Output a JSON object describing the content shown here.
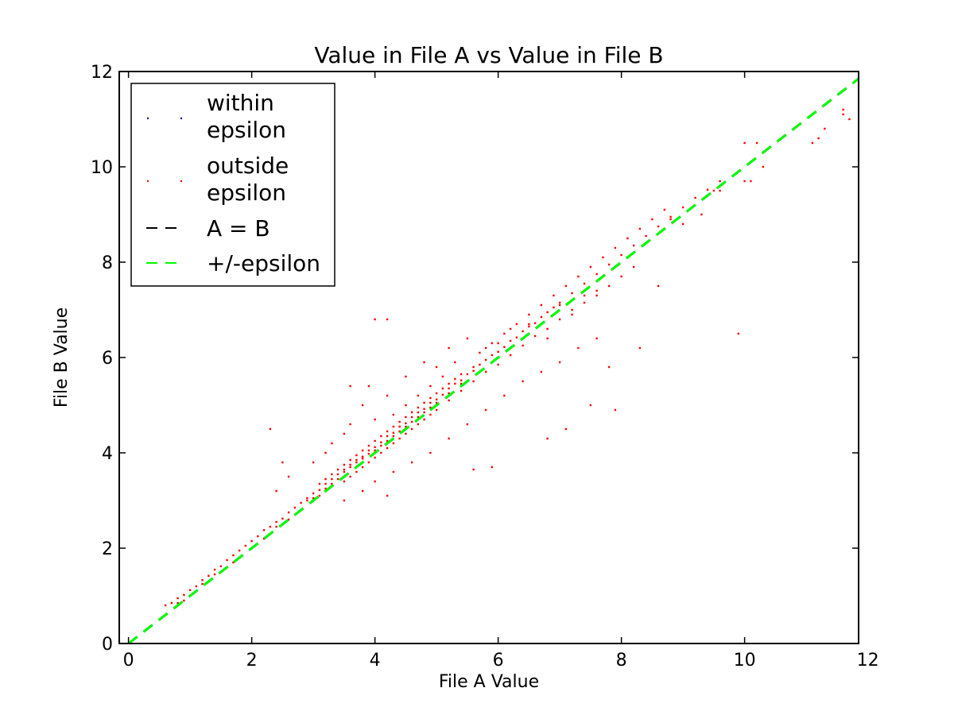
{
  "chart_data": {
    "type": "scatter",
    "title": "Value in File A vs Value in File B",
    "xlabel": "File A Value",
    "ylabel": "File B Value",
    "xlim": [
      -0.15,
      11.85
    ],
    "ylim": [
      0,
      12
    ],
    "xticks": [
      0,
      2,
      4,
      6,
      8,
      10,
      12
    ],
    "yticks": [
      0,
      2,
      4,
      6,
      8,
      10,
      12
    ],
    "grid": false,
    "legend_position": "top-left",
    "series": [
      {
        "name": "within\nepsilon",
        "kind": "points",
        "color": "#000080",
        "points": []
      },
      {
        "name": "outside\nepsilon",
        "kind": "points",
        "color": "#ff0000",
        "points": [
          [
            0.6,
            0.8
          ],
          [
            0.7,
            0.85
          ],
          [
            0.8,
            0.95
          ],
          [
            0.9,
            1.02
          ],
          [
            1.0,
            1.12
          ],
          [
            1.1,
            1.2
          ],
          [
            1.2,
            1.33
          ],
          [
            1.3,
            1.42
          ],
          [
            1.4,
            1.55
          ],
          [
            1.5,
            1.62
          ],
          [
            1.6,
            1.75
          ],
          [
            1.7,
            1.85
          ],
          [
            1.8,
            1.95
          ],
          [
            1.9,
            2.05
          ],
          [
            2.0,
            2.15
          ],
          [
            2.1,
            2.25
          ],
          [
            2.2,
            2.38
          ],
          [
            2.3,
            2.45
          ],
          [
            2.4,
            2.55
          ],
          [
            2.5,
            2.62
          ],
          [
            2.6,
            2.75
          ],
          [
            2.7,
            2.85
          ],
          [
            2.8,
            2.95
          ],
          [
            2.9,
            3.05
          ],
          [
            3.0,
            3.15
          ],
          [
            3.1,
            3.22
          ],
          [
            3.2,
            3.35
          ],
          [
            3.3,
            3.45
          ],
          [
            3.4,
            3.55
          ],
          [
            3.5,
            3.65
          ],
          [
            3.6,
            3.75
          ],
          [
            3.7,
            3.85
          ],
          [
            3.8,
            3.92
          ],
          [
            3.9,
            4.05
          ],
          [
            4.0,
            4.12
          ],
          [
            4.1,
            4.22
          ],
          [
            4.2,
            4.35
          ],
          [
            4.3,
            4.42
          ],
          [
            4.4,
            4.55
          ],
          [
            4.5,
            4.62
          ],
          [
            4.6,
            4.75
          ],
          [
            4.7,
            4.85
          ],
          [
            4.8,
            4.92
          ],
          [
            4.9,
            5.05
          ],
          [
            5.0,
            5.12
          ],
          [
            5.1,
            5.22
          ],
          [
            5.2,
            5.35
          ],
          [
            5.3,
            5.45
          ],
          [
            5.4,
            5.52
          ],
          [
            5.5,
            5.65
          ],
          [
            5.6,
            5.72
          ],
          [
            5.7,
            5.85
          ],
          [
            5.8,
            5.95
          ],
          [
            5.9,
            6.05
          ],
          [
            6.0,
            6.12
          ],
          [
            6.1,
            6.22
          ],
          [
            6.2,
            6.35
          ],
          [
            6.3,
            6.42
          ],
          [
            6.4,
            6.55
          ],
          [
            6.5,
            6.65
          ],
          [
            6.6,
            6.72
          ],
          [
            6.7,
            6.85
          ],
          [
            6.8,
            6.95
          ],
          [
            6.9,
            7.05
          ],
          [
            7.0,
            7.15
          ],
          [
            7.2,
            7.35
          ],
          [
            7.4,
            7.55
          ],
          [
            7.6,
            7.75
          ],
          [
            7.8,
            7.95
          ],
          [
            8.0,
            8.15
          ],
          [
            8.2,
            8.35
          ],
          [
            8.4,
            8.55
          ],
          [
            8.6,
            8.75
          ],
          [
            8.8,
            8.95
          ],
          [
            9.0,
            9.15
          ],
          [
            9.2,
            9.35
          ],
          [
            9.4,
            9.52
          ],
          [
            9.6,
            9.7
          ],
          [
            2.9,
            3.0
          ],
          [
            3.0,
            3.05
          ],
          [
            3.1,
            3.1
          ],
          [
            3.2,
            3.25
          ],
          [
            3.3,
            3.35
          ],
          [
            3.4,
            3.45
          ],
          [
            3.5,
            3.6
          ],
          [
            3.6,
            3.7
          ],
          [
            3.7,
            3.8
          ],
          [
            3.8,
            3.88
          ],
          [
            3.9,
            3.98
          ],
          [
            4.0,
            4.05
          ],
          [
            4.1,
            4.15
          ],
          [
            4.2,
            4.25
          ],
          [
            4.3,
            4.35
          ],
          [
            4.4,
            4.45
          ],
          [
            4.5,
            4.55
          ],
          [
            4.6,
            4.65
          ],
          [
            4.7,
            4.75
          ],
          [
            4.8,
            4.85
          ],
          [
            4.9,
            4.95
          ],
          [
            5.0,
            5.05
          ],
          [
            5.2,
            5.25
          ],
          [
            5.4,
            5.45
          ],
          [
            3.1,
            3.35
          ],
          [
            3.2,
            3.45
          ],
          [
            3.3,
            3.55
          ],
          [
            3.4,
            3.65
          ],
          [
            3.5,
            3.75
          ],
          [
            3.6,
            3.85
          ],
          [
            3.7,
            3.95
          ],
          [
            3.8,
            4.05
          ],
          [
            3.9,
            4.15
          ],
          [
            4.0,
            4.25
          ],
          [
            4.1,
            4.35
          ],
          [
            4.2,
            4.45
          ],
          [
            4.3,
            4.55
          ],
          [
            4.4,
            4.65
          ],
          [
            4.5,
            4.75
          ],
          [
            4.6,
            4.85
          ],
          [
            4.7,
            4.95
          ],
          [
            4.8,
            5.05
          ],
          [
            4.9,
            5.15
          ],
          [
            5.0,
            5.25
          ],
          [
            5.1,
            5.35
          ],
          [
            5.2,
            5.45
          ],
          [
            5.3,
            5.55
          ],
          [
            5.4,
            5.65
          ],
          [
            3.5,
            3.4
          ],
          [
            3.6,
            3.5
          ],
          [
            3.7,
            3.6
          ],
          [
            3.8,
            3.7
          ],
          [
            3.9,
            3.8
          ],
          [
            4.0,
            3.9
          ],
          [
            4.1,
            4.0
          ],
          [
            4.2,
            4.1
          ],
          [
            4.3,
            4.2
          ],
          [
            4.4,
            4.3
          ],
          [
            4.5,
            4.4
          ],
          [
            4.6,
            4.5
          ],
          [
            4.7,
            4.6
          ],
          [
            4.8,
            4.7
          ],
          [
            4.9,
            4.8
          ],
          [
            5.0,
            4.9
          ],
          [
            5.2,
            5.1
          ],
          [
            5.4,
            5.3
          ],
          [
            5.6,
            5.5
          ],
          [
            5.8,
            5.7
          ],
          [
            6.0,
            5.85
          ],
          [
            6.2,
            6.05
          ],
          [
            6.4,
            6.25
          ],
          [
            6.6,
            6.45
          ],
          [
            6.8,
            6.6
          ],
          [
            7.0,
            6.8
          ],
          [
            7.2,
            7.0
          ],
          [
            7.4,
            7.15
          ],
          [
            7.6,
            7.3
          ],
          [
            7.8,
            7.5
          ],
          [
            8.0,
            7.7
          ],
          [
            8.2,
            7.9
          ],
          [
            5.7,
            6.1
          ],
          [
            5.9,
            6.3
          ],
          [
            6.1,
            6.5
          ],
          [
            6.3,
            6.7
          ],
          [
            6.5,
            6.9
          ],
          [
            6.7,
            7.1
          ],
          [
            6.9,
            7.3
          ],
          [
            7.1,
            7.5
          ],
          [
            7.3,
            7.7
          ],
          [
            7.5,
            7.9
          ],
          [
            7.7,
            8.1
          ],
          [
            7.9,
            8.3
          ],
          [
            8.1,
            8.5
          ],
          [
            8.3,
            8.7
          ],
          [
            8.5,
            8.9
          ],
          [
            8.7,
            9.1
          ],
          [
            1.0,
            1.0
          ],
          [
            1.2,
            1.25
          ],
          [
            1.4,
            1.45
          ],
          [
            1.6,
            1.6
          ],
          [
            1.8,
            1.8
          ],
          [
            2.0,
            2.0
          ],
          [
            2.2,
            2.2
          ],
          [
            2.4,
            2.45
          ],
          [
            2.6,
            2.6
          ],
          [
            2.8,
            2.8
          ],
          [
            0.8,
            0.85
          ],
          [
            0.9,
            0.9
          ],
          [
            1.1,
            1.1
          ],
          [
            1.3,
            1.3
          ],
          [
            1.5,
            1.5
          ],
          [
            1.7,
            1.7
          ],
          [
            3.2,
            4.0
          ],
          [
            3.5,
            4.4
          ],
          [
            3.8,
            5.0
          ],
          [
            4.0,
            4.7
          ],
          [
            4.2,
            5.2
          ],
          [
            4.5,
            5.6
          ],
          [
            4.8,
            5.9
          ],
          [
            5.0,
            5.8
          ],
          [
            5.2,
            6.2
          ],
          [
            5.5,
            6.4
          ],
          [
            3.0,
            3.8
          ],
          [
            3.3,
            4.2
          ],
          [
            3.6,
            4.6
          ],
          [
            3.9,
            5.4
          ],
          [
            2.6,
            3.5
          ],
          [
            2.4,
            3.2
          ],
          [
            4.0,
            3.4
          ],
          [
            4.3,
            3.6
          ],
          [
            4.6,
            3.8
          ],
          [
            4.9,
            4.0
          ],
          [
            5.2,
            4.3
          ],
          [
            5.5,
            4.6
          ],
          [
            5.8,
            4.9
          ],
          [
            6.1,
            5.2
          ],
          [
            6.4,
            5.5
          ],
          [
            6.7,
            5.7
          ],
          [
            7.0,
            5.9
          ],
          [
            7.3,
            6.2
          ],
          [
            7.6,
            6.4
          ],
          [
            3.8,
            3.2
          ],
          [
            3.5,
            3.0
          ],
          [
            4.2,
            3.1
          ],
          [
            4.2,
            6.8
          ],
          [
            4.0,
            6.8
          ],
          [
            3.6,
            5.4
          ],
          [
            2.3,
            4.5
          ],
          [
            2.5,
            3.8
          ],
          [
            5.6,
            3.65
          ],
          [
            5.9,
            3.7
          ],
          [
            6.8,
            4.3
          ],
          [
            7.1,
            4.5
          ],
          [
            7.5,
            5.0
          ],
          [
            7.8,
            5.8
          ],
          [
            7.9,
            4.9
          ],
          [
            8.3,
            6.2
          ],
          [
            8.6,
            7.5
          ],
          [
            9.5,
            9.5
          ],
          [
            9.6,
            9.5
          ],
          [
            9.3,
            9.0
          ],
          [
            9.0,
            8.8
          ],
          [
            8.8,
            8.9
          ],
          [
            10.0,
            10.5
          ],
          [
            10.2,
            10.5
          ],
          [
            10.3,
            10.0
          ],
          [
            10.0,
            9.7
          ],
          [
            10.8,
            10.8
          ],
          [
            11.1,
            10.5
          ],
          [
            11.2,
            10.6
          ],
          [
            11.3,
            10.8
          ],
          [
            11.6,
            11.1
          ],
          [
            11.7,
            11.0
          ],
          [
            11.6,
            11.2
          ],
          [
            10.1,
            9.7
          ],
          [
            9.9,
            6.5
          ],
          [
            7.0,
            7.1
          ],
          [
            7.2,
            6.9
          ],
          [
            7.4,
            7.3
          ],
          [
            7.6,
            7.4
          ],
          [
            6.8,
            6.4
          ],
          [
            6.5,
            6.7
          ],
          [
            6.2,
            6.6
          ],
          [
            6.0,
            6.3
          ],
          [
            5.8,
            6.2
          ],
          [
            5.6,
            5.8
          ],
          [
            5.3,
            5.9
          ],
          [
            5.1,
            5.6
          ],
          [
            4.9,
            5.4
          ],
          [
            4.7,
            5.2
          ],
          [
            4.5,
            5.0
          ],
          [
            4.3,
            4.8
          ]
        ]
      },
      {
        "name": "A = B",
        "kind": "line",
        "color": "#000000",
        "dashed": true,
        "x": [
          0,
          11.85
        ],
        "y": [
          0,
          11.85
        ]
      },
      {
        "name": "+/-epsilon",
        "kind": "line",
        "color": "#00ff00",
        "dashed": true,
        "x": [
          0,
          11.85
        ],
        "y": [
          0,
          11.85
        ]
      }
    ]
  }
}
